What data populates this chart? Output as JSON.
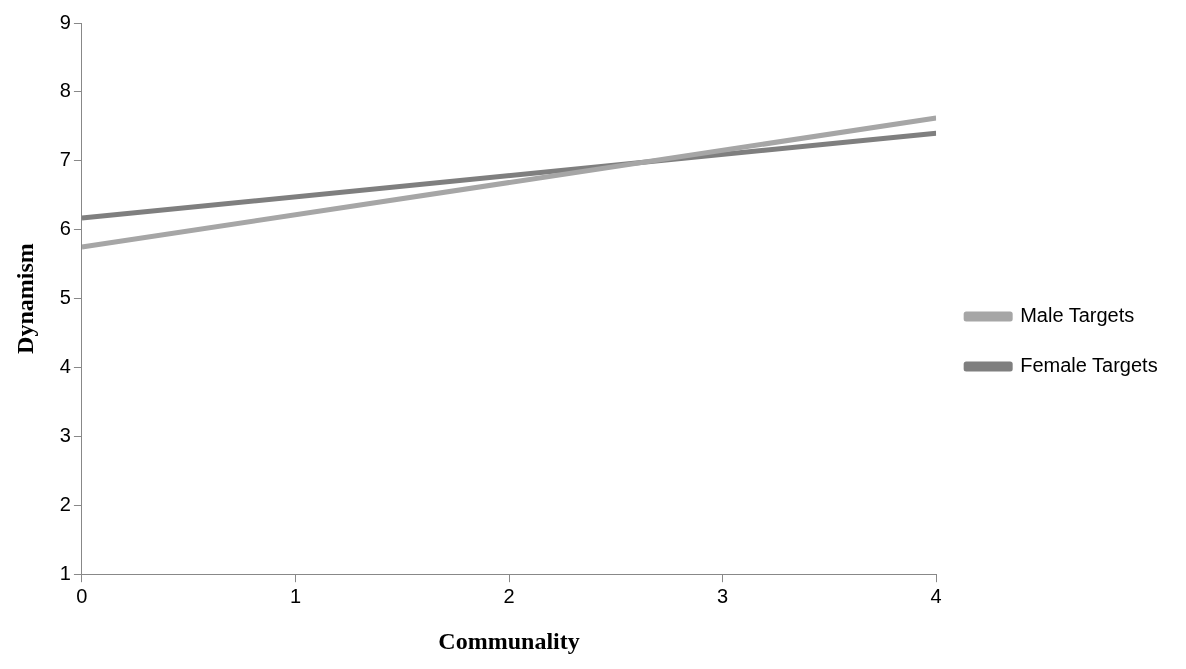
{
  "chart_data": {
    "type": "line",
    "xlabel": "Communality",
    "ylabel": "Dynamism",
    "x": [
      0,
      4
    ],
    "series": [
      {
        "name": "Male Targets",
        "color": "#a6a6a6",
        "values": [
          5.75,
          7.62
        ]
      },
      {
        "name": "Female Targets",
        "color": "#7f7f7f",
        "values": [
          6.17,
          7.4
        ]
      }
    ],
    "xlim": [
      0,
      4
    ],
    "xticks": [
      0,
      1,
      2,
      3,
      4
    ],
    "ylim": [
      1,
      9
    ],
    "yticks": [
      1,
      2,
      3,
      4,
      5,
      6,
      7,
      8,
      9
    ],
    "grid": false,
    "legend": "right",
    "marker": "none",
    "line_style": "solid"
  }
}
